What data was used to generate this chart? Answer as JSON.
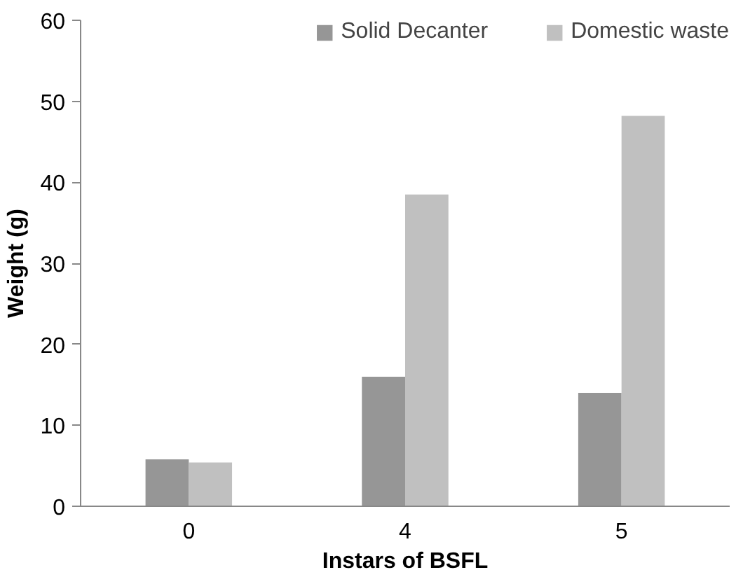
{
  "chart_data": {
    "type": "bar",
    "xlabel": "Instars of BSFL",
    "ylabel": "Weight (g)",
    "categories": [
      "0",
      "4",
      "5"
    ],
    "series": [
      {
        "name": "Solid Decanter",
        "color": "#969696",
        "values": [
          5.8,
          16.0,
          14.0
        ]
      },
      {
        "name": "Domestic waste",
        "color": "#c0c0c0",
        "values": [
          5.4,
          38.5,
          48.2
        ]
      }
    ],
    "ylim": [
      0,
      60
    ],
    "yticks": [
      0,
      10,
      20,
      30,
      40,
      50,
      60
    ],
    "grid": false,
    "legend": "top"
  }
}
